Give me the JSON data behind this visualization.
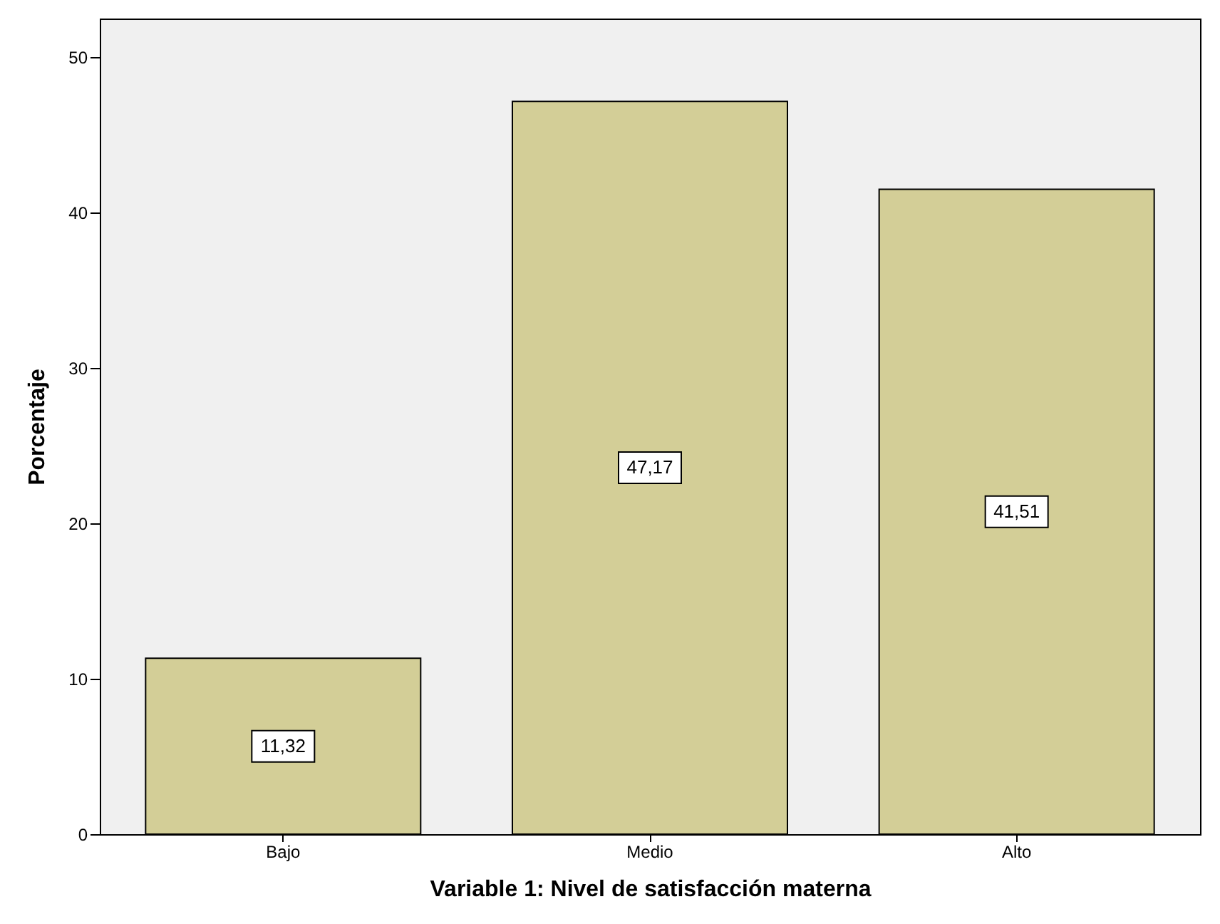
{
  "chart_data": {
    "type": "bar",
    "xlabel": "Variable 1: Nivel de satisfacción materna",
    "ylabel": "Porcentaje",
    "categories": [
      "Bajo",
      "Medio",
      "Alto"
    ],
    "values": [
      11.32,
      47.17,
      41.51
    ],
    "value_labels": [
      "11,32",
      "47,17",
      "41,51"
    ],
    "color": "#d3ce97",
    "ylim": [
      0,
      52.5
    ],
    "yticks": [
      0,
      10,
      20,
      30,
      40,
      50
    ],
    "grid": false
  }
}
